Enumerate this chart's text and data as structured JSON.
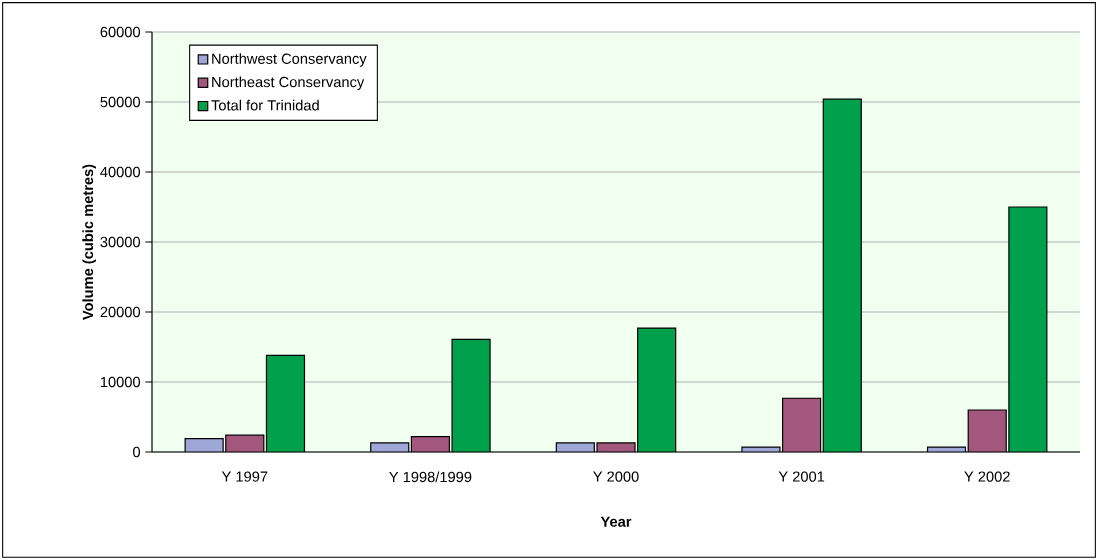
{
  "chart_data": {
    "type": "bar",
    "xlabel": "Year",
    "ylabel": "Volume (cubic metres)",
    "categories": [
      "Y 1997",
      "Y 1998/1999",
      "Y 2000",
      "Y 2001",
      "Y 2002"
    ],
    "series": [
      {
        "name": "Northwest Conservancy",
        "color": "#9fa6d8",
        "values": [
          1900,
          1300,
          1300,
          700,
          700
        ]
      },
      {
        "name": "Northeast Conservancy",
        "color": "#a3577c",
        "values": [
          2400,
          2200,
          1300,
          7700,
          6000
        ]
      },
      {
        "name": "Total for Trinidad",
        "color": "#00a04c",
        "values": [
          13800,
          16100,
          17700,
          50400,
          35000
        ]
      }
    ],
    "ylim": [
      0,
      60000
    ],
    "yticks": [
      0,
      10000,
      20000,
      30000,
      40000,
      50000,
      60000
    ],
    "grid": "y",
    "legend": "top left"
  }
}
